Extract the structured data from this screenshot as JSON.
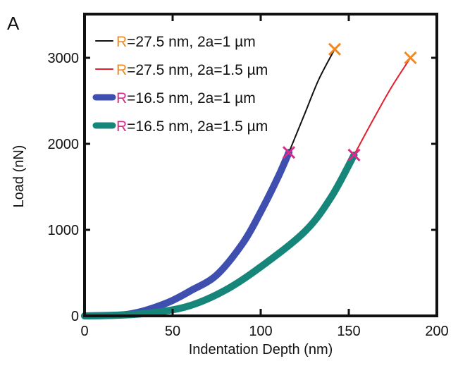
{
  "panel_label": "A",
  "chart_data": {
    "type": "line",
    "title": "",
    "xlabel": "Indentation Depth (nm)",
    "ylabel": "Load (nN)",
    "xlim": [
      0,
      200
    ],
    "ylim": [
      0,
      3500
    ],
    "xticks": [
      0,
      50,
      100,
      150,
      200
    ],
    "yticks": [
      0,
      1000,
      2000,
      3000
    ],
    "xtick_labels": [
      "0",
      "50",
      "100",
      "150",
      "200"
    ],
    "ytick_labels": [
      "0",
      "1000",
      "2000",
      "3000"
    ],
    "grid": false,
    "legend_position": "top-left",
    "series": [
      {
        "name": "R=27.5 nm, 2a=1 µm",
        "color": "#111111",
        "style": "thin",
        "x": [
          116,
          125,
          133,
          142
        ],
        "y": [
          1900,
          2350,
          2750,
          3100
        ]
      },
      {
        "name": "R=27.5 nm, 2a=1.5 µm",
        "color": "#e0202e",
        "style": "thin",
        "x": [
          153,
          163,
          174,
          185
        ],
        "y": [
          1870,
          2250,
          2650,
          3000
        ]
      },
      {
        "name": "R=16.5 nm, 2a=1 µm",
        "color": "#3f4fb0",
        "style": "thick",
        "x": [
          0,
          20,
          30,
          40,
          50,
          60,
          75,
          90,
          100,
          110,
          116
        ],
        "y": [
          0,
          10,
          40,
          100,
          180,
          290,
          475,
          850,
          1210,
          1620,
          1900
        ]
      },
      {
        "name": "R=16.5 nm, 2a=1.5 µm",
        "color": "#16857a",
        "style": "thick",
        "x": [
          0,
          20,
          40,
          60,
          80,
          100,
          125,
          140,
          153
        ],
        "y": [
          0,
          8,
          40,
          120,
          300,
          570,
          980,
          1380,
          1870
        ]
      }
    ],
    "markers": [
      {
        "label": "x",
        "x": 142,
        "y": 3100,
        "color": "#f08a1e"
      },
      {
        "label": "x",
        "x": 185,
        "y": 3000,
        "color": "#f08a1e"
      },
      {
        "label": "x",
        "x": 116,
        "y": 1900,
        "color": "#d92c8a"
      },
      {
        "label": "x",
        "x": 153,
        "y": 1870,
        "color": "#d92c8a"
      }
    ],
    "legend": [
      {
        "prefix": "R",
        "text": "=27.5 nm, 2a=1 µm",
        "prefix_color": "#f08a1e"
      },
      {
        "prefix": "R",
        "text": "=27.5 nm, 2a=1.5 µm",
        "prefix_color": "#f08a1e"
      },
      {
        "prefix": "R",
        "text": "=16.5 nm, 2a=1 µm",
        "prefix_color": "#d92c8a"
      },
      {
        "prefix": "R",
        "text": "=16.5 nm, 2a=1.5 µm",
        "prefix_color": "#d92c8a"
      }
    ]
  }
}
